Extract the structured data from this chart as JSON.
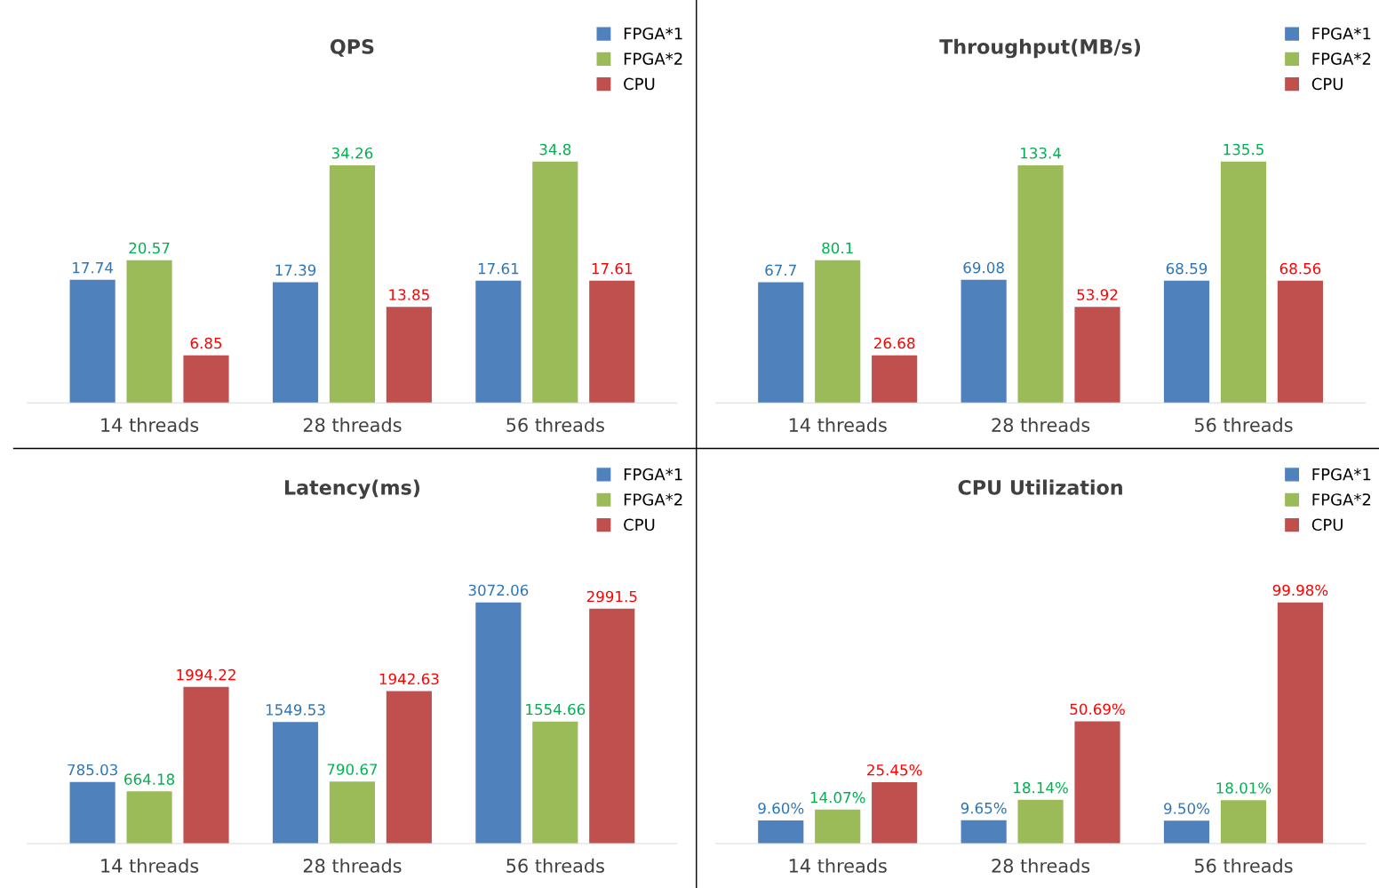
{
  "chart_data": [
    {
      "type": "bar",
      "title": "QPS",
      "categories": [
        "14 threads",
        "28 threads",
        "56 threads"
      ],
      "legend": "top right",
      "tick_labels": "x",
      "series": [
        {
          "name": "FPGA*1",
          "color": "#4f81bd",
          "values": [
            17.74,
            17.39,
            17.61
          ],
          "value_labels": [
            "17.74",
            "17.39",
            "17.61"
          ]
        },
        {
          "name": "FPGA*2",
          "color": "#9bbb59",
          "values": [
            20.57,
            34.26,
            34.8
          ],
          "value_labels": [
            "20.57",
            "34.26",
            "34.8"
          ]
        },
        {
          "name": "CPU",
          "color": "#c0504d",
          "values": [
            6.85,
            13.85,
            17.61
          ],
          "value_labels": [
            "6.85",
            "13.85",
            "17.61"
          ]
        }
      ]
    },
    {
      "type": "bar",
      "title": "Throughput(MB/s)",
      "categories": [
        "14 threads",
        "28 threads",
        "56 threads"
      ],
      "legend": "top right",
      "tick_labels": "x",
      "series": [
        {
          "name": "FPGA*1",
          "color": "#4f81bd",
          "values": [
            67.7,
            69.08,
            68.59
          ],
          "value_labels": [
            "67.7",
            "69.08",
            "68.59"
          ]
        },
        {
          "name": "FPGA*2",
          "color": "#9bbb59",
          "values": [
            80.1,
            133.4,
            135.5
          ],
          "value_labels": [
            "80.1",
            "133.4",
            "135.5"
          ]
        },
        {
          "name": "CPU",
          "color": "#c0504d",
          "values": [
            26.68,
            53.92,
            68.56
          ],
          "value_labels": [
            "26.68",
            "53.92",
            "68.56"
          ]
        }
      ]
    },
    {
      "type": "bar",
      "title": "Latency(ms)",
      "categories": [
        "14 threads",
        "28 threads",
        "56 threads"
      ],
      "legend": "top right",
      "tick_labels": "x",
      "series": [
        {
          "name": "FPGA*1",
          "color": "#4f81bd",
          "values": [
            785.03,
            1549.53,
            3072.06
          ],
          "value_labels": [
            "785.03",
            "1549.53",
            "3072.06"
          ]
        },
        {
          "name": "FPGA*2",
          "color": "#9bbb59",
          "values": [
            664.18,
            790.67,
            1554.66
          ],
          "value_labels": [
            "664.18",
            "790.67",
            "1554.66"
          ]
        },
        {
          "name": "CPU",
          "color": "#c0504d",
          "values": [
            1994.22,
            1942.63,
            2991.5
          ],
          "value_labels": [
            "1994.22",
            "1942.63",
            "2991.5"
          ]
        }
      ]
    },
    {
      "type": "bar",
      "title": "CPU Utilization",
      "categories": [
        "14 threads",
        "28 threads",
        "56 threads"
      ],
      "legend": "top right",
      "tick_labels": "x",
      "series": [
        {
          "name": "FPGA*1",
          "color": "#4f81bd",
          "values": [
            9.6,
            9.65,
            9.5
          ],
          "value_labels": [
            "9.60%",
            "9.65%",
            "9.50%"
          ]
        },
        {
          "name": "FPGA*2",
          "color": "#9bbb59",
          "values": [
            14.07,
            18.14,
            18.01
          ],
          "value_labels": [
            "14.07%",
            "18.14%",
            "18.01%"
          ]
        },
        {
          "name": "CPU",
          "color": "#c0504d",
          "values": [
            25.45,
            50.69,
            99.98
          ],
          "value_labels": [
            "25.45%",
            "50.69%",
            "99.98%"
          ]
        }
      ]
    }
  ]
}
